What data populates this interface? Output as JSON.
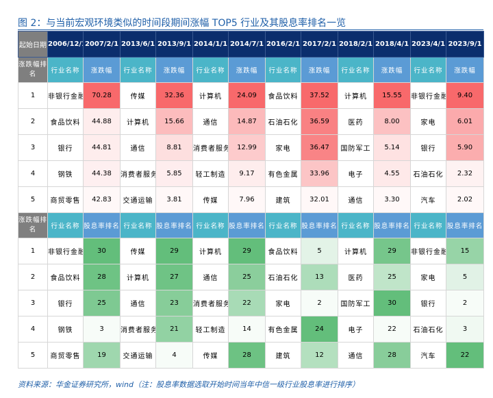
{
  "title": "图 2：与当前宏观环境类似的时间段期间涨幅 TOP5 行业及其股息率排名一览",
  "source": "资料来源：华金证券研究所，wind（注：股息率数据选取开始时间当年中信一级行业股息率进行排序）",
  "header": {
    "start_label": "起始日期",
    "dates": [
      "2006/12/1",
      "2007/2/1",
      "2013/6/1",
      "2013/9/1",
      "2014/1/1",
      "2014/7/1",
      "2016/2/1",
      "2017/2/1",
      "2018/2/1",
      "2018/4/1",
      "2023/4/1",
      "2023/9/1"
    ]
  },
  "section1": {
    "corner_label": "涨跌幅排名",
    "col_labels": [
      "行业名称",
      "涨跌幅"
    ],
    "rows": [
      {
        "rank": "1",
        "cells": [
          [
            "非银行金融",
            "70.28"
          ],
          [
            "传媒",
            "32.36"
          ],
          [
            "计算机",
            "24.09"
          ],
          [
            "食品饮料",
            "37.52"
          ],
          [
            "计算机",
            "15.55"
          ],
          [
            "非银行金融",
            "9.40"
          ]
        ]
      },
      {
        "rank": "2",
        "cells": [
          [
            "食品饮料",
            "44.88"
          ],
          [
            "计算机",
            "15.66"
          ],
          [
            "通信",
            "14.87"
          ],
          [
            "石油石化",
            "36.59"
          ],
          [
            "医药",
            "8.00"
          ],
          [
            "家电",
            "6.01"
          ]
        ]
      },
      {
        "rank": "3",
        "cells": [
          [
            "银行",
            "44.81"
          ],
          [
            "通信",
            "8.81"
          ],
          [
            "消费者服务",
            "12.99"
          ],
          [
            "家电",
            "36.47"
          ],
          [
            "国防军工",
            "5.14"
          ],
          [
            "银行",
            "5.90"
          ]
        ]
      },
      {
        "rank": "4",
        "cells": [
          [
            "钢铁",
            "44.38"
          ],
          [
            "消费者服务",
            "5.85"
          ],
          [
            "轻工制造",
            "9.17"
          ],
          [
            "有色金属",
            "33.96"
          ],
          [
            "电子",
            "4.55"
          ],
          [
            "石油石化",
            "2.32"
          ]
        ]
      },
      {
        "rank": "5",
        "cells": [
          [
            "商贸零售",
            "42.83"
          ],
          [
            "交通运输",
            "3.81"
          ],
          [
            "传媒",
            "7.96"
          ],
          [
            "建筑",
            "32.01"
          ],
          [
            "通信",
            "3.30"
          ],
          [
            "汽车",
            "2.02"
          ]
        ]
      }
    ]
  },
  "section2": {
    "corner_label": "涨跌幅排名",
    "col_labels": [
      "行业名称",
      "股息率排名"
    ],
    "rows": [
      {
        "rank": "1",
        "cells": [
          [
            "非银行金融",
            "30"
          ],
          [
            "传媒",
            "29"
          ],
          [
            "计算机",
            "29"
          ],
          [
            "食品饮料",
            "5"
          ],
          [
            "计算机",
            "29"
          ],
          [
            "非银行金融",
            "15"
          ]
        ]
      },
      {
        "rank": "2",
        "cells": [
          [
            "食品饮料",
            "28"
          ],
          [
            "计算机",
            "27"
          ],
          [
            "通信",
            "25"
          ],
          [
            "石油石化",
            "13"
          ],
          [
            "医药",
            "25"
          ],
          [
            "家电",
            "5"
          ]
        ]
      },
      {
        "rank": "3",
        "cells": [
          [
            "银行",
            "25"
          ],
          [
            "通信",
            "23"
          ],
          [
            "消费者服务",
            "22"
          ],
          [
            "家电",
            "2"
          ],
          [
            "国防军工",
            "30"
          ],
          [
            "银行",
            "2"
          ]
        ]
      },
      {
        "rank": "4",
        "cells": [
          [
            "钢铁",
            "3"
          ],
          [
            "消费者服务",
            "21"
          ],
          [
            "轻工制造",
            "14"
          ],
          [
            "有色金属",
            "24"
          ],
          [
            "电子",
            "22"
          ],
          [
            "石油石化",
            "3"
          ]
        ]
      },
      {
        "rank": "5",
        "cells": [
          [
            "商贸零售",
            "19"
          ],
          [
            "交通运输",
            "4"
          ],
          [
            "传媒",
            "28"
          ],
          [
            "建筑",
            "12"
          ],
          [
            "通信",
            "28"
          ],
          [
            "汽车",
            "22"
          ]
        ]
      }
    ]
  },
  "colors": {
    "header_bg": "#0b2e6d",
    "corner_bg": "#7f7f7f",
    "industry_header": "#4bb5c8",
    "value_header": "#5b9bd5",
    "red_max": "#f8696b",
    "green_max": "#63be7b",
    "title_blue": "#1f5fa8"
  }
}
